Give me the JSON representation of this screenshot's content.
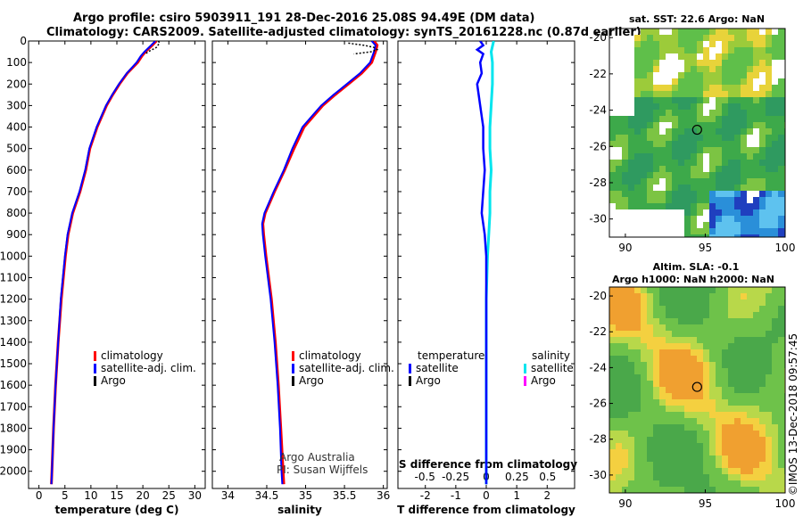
{
  "title_line1": "Argo profile: csiro 5903911_191 28-Dec-2016 25.08S 94.49E (DM data)",
  "title_line2": "Climatology: CARS2009. Satellite-adjusted climatology: synTS_20161228.nc (0.87d earlier)",
  "credit_line1": "Argo Australia",
  "credit_line2": "PI: Susan Wijffels",
  "stamp": "©IMOS 13-Dec-2018 09:57:45",
  "colors": {
    "climatology": "#ff0000",
    "satellite": "#0000ff",
    "argo": "#000000",
    "sat_salinity": "#00e5ee",
    "argo_salinity": "#ff00ff"
  },
  "chart_data": [
    {
      "type": "line",
      "xlabel": "temperature (deg C)",
      "xlim": [
        -2,
        32
      ],
      "xticks": [
        0,
        5,
        10,
        15,
        20,
        25,
        30
      ],
      "ylim": [
        2080,
        0
      ],
      "yticks": [
        0,
        100,
        200,
        300,
        400,
        500,
        600,
        700,
        800,
        900,
        1000,
        1100,
        1200,
        1300,
        1400,
        1500,
        1600,
        1700,
        1800,
        1900,
        2000
      ],
      "legend": [
        "climatology",
        "satellite-adj. clim.",
        "Argo"
      ],
      "series": [
        {
          "name": "climatology",
          "depth": [
            0,
            20,
            50,
            70,
            100,
            150,
            200,
            250,
            300,
            400,
            500,
            600,
            700,
            800,
            900,
            1000,
            1200,
            1400,
            1600,
            1800,
            2000,
            2060
          ],
          "values": [
            22.6,
            21.8,
            20.5,
            19.8,
            19.0,
            17.0,
            15.5,
            14.2,
            13.0,
            11.2,
            9.8,
            9.0,
            7.9,
            6.5,
            5.6,
            5.1,
            4.3,
            3.7,
            3.2,
            2.8,
            2.5,
            2.4
          ]
        },
        {
          "name": "satellite-adj. clim.",
          "depth": [
            0,
            20,
            50,
            70,
            100,
            150,
            200,
            250,
            300,
            400,
            500,
            600,
            700,
            800,
            900,
            1000,
            1200,
            1400,
            1600,
            1800,
            2000,
            2060
          ],
          "values": [
            22.4,
            21.6,
            20.3,
            19.6,
            18.8,
            16.9,
            15.4,
            14.1,
            12.9,
            11.1,
            9.7,
            8.9,
            7.8,
            6.4,
            5.5,
            5.0,
            4.2,
            3.7,
            3.2,
            2.8,
            2.5,
            2.4
          ]
        },
        {
          "name": "Argo",
          "depth": [
            0,
            10,
            20,
            30,
            40,
            50,
            60
          ],
          "values": [
            23.0,
            23.2,
            22.9,
            22.6,
            21.8,
            21.0,
            20.5
          ]
        }
      ]
    },
    {
      "type": "line",
      "xlabel": "salinity",
      "xlim": [
        33.8,
        36.05
      ],
      "xticks": [
        34,
        34.5,
        35,
        35.5,
        36
      ],
      "ylim": [
        2080,
        0
      ],
      "legend": [
        "climatology",
        "satellite-adj. clim.",
        "Argo"
      ],
      "series": [
        {
          "name": "climatology",
          "depth": [
            0,
            20,
            50,
            100,
            150,
            200,
            250,
            300,
            400,
            500,
            600,
            700,
            800,
            850,
            900,
            1000,
            1200,
            1400,
            1600,
            1800,
            2000,
            2060
          ],
          "values": [
            35.88,
            35.92,
            35.9,
            35.85,
            35.72,
            35.55,
            35.38,
            35.22,
            34.98,
            34.85,
            34.73,
            34.6,
            34.48,
            34.45,
            34.46,
            34.49,
            34.56,
            34.61,
            34.65,
            34.68,
            34.71,
            34.72
          ]
        },
        {
          "name": "satellite-adj. clim.",
          "depth": [
            0,
            20,
            50,
            100,
            150,
            200,
            250,
            300,
            400,
            500,
            600,
            700,
            800,
            850,
            900,
            1000,
            1200,
            1400,
            1600,
            1800,
            2000,
            2060
          ],
          "values": [
            35.85,
            35.9,
            35.88,
            35.83,
            35.7,
            35.53,
            35.36,
            35.2,
            34.96,
            34.83,
            34.72,
            34.59,
            34.47,
            34.44,
            34.45,
            34.48,
            34.55,
            34.6,
            34.64,
            34.67,
            34.69,
            34.7
          ]
        },
        {
          "name": "Argo",
          "depth": [
            10,
            20,
            30,
            40,
            50,
            60
          ],
          "values": [
            35.55,
            35.75,
            35.88,
            35.92,
            35.84,
            35.62
          ]
        }
      ]
    },
    {
      "type": "line",
      "xlabel": "T difference from climatology",
      "xlabel_top": "S difference from climatology",
      "xlim": [
        -2.9,
        2.9
      ],
      "xticks": [
        -2,
        -1,
        0,
        1,
        2
      ],
      "xticks_top": [
        -0.5,
        -0.25,
        0,
        0.25,
        0.5
      ],
      "xticks_top_labels": [
        "-0.5",
        "-0.25",
        "0",
        "0.25",
        "0.5"
      ],
      "ylim": [
        2080,
        0
      ],
      "legend_temperature_title": "temperature",
      "legend_salinity_title": "salinity",
      "legend_temperature": [
        "satellite",
        "Argo"
      ],
      "legend_salinity": [
        "satellite",
        "Argo"
      ],
      "series": [
        {
          "name": "temperature satellite",
          "depth": [
            0,
            20,
            40,
            60,
            100,
            150,
            200,
            250,
            300,
            350,
            400,
            500,
            600,
            700,
            800,
            900,
            1000,
            1200,
            1400,
            1600,
            1800,
            2000,
            2060
          ],
          "values": [
            -0.2,
            -0.1,
            -0.3,
            -0.1,
            -0.2,
            -0.15,
            -0.3,
            -0.25,
            -0.2,
            -0.15,
            -0.1,
            -0.1,
            -0.05,
            -0.1,
            -0.15,
            -0.05,
            0.0,
            0.0,
            0.0,
            0.0,
            0.0,
            0.0,
            0.0
          ]
        },
        {
          "name": "salinity satellite",
          "depth": [
            0,
            50,
            100,
            200,
            300,
            400,
            500,
            600,
            700,
            800,
            900,
            1000,
            1200,
            1400,
            1600,
            1800,
            2000,
            2060
          ],
          "values": [
            0.06,
            0.04,
            0.05,
            0.05,
            0.04,
            0.03,
            0.03,
            0.04,
            0.03,
            0.03,
            0.02,
            0.01,
            0.0,
            0.0,
            0.0,
            0.0,
            0.0,
            0.0
          ]
        }
      ]
    },
    {
      "type": "heatmap",
      "title": "sat. SST: 22.6 Argo: NaN",
      "xlim": [
        89,
        100
      ],
      "ylim": [
        -31,
        -19.5
      ],
      "xticks": [
        90,
        95,
        100
      ],
      "yticks": [
        -20,
        -22,
        -24,
        -26,
        -28,
        -30
      ],
      "marker": {
        "lon": 94.49,
        "lat": -25.08
      }
    },
    {
      "type": "heatmap",
      "title_line1": "Altim. SLA: -0.1",
      "title_line2": "Argo h1000: NaN h2000: NaN",
      "xlim": [
        89,
        100
      ],
      "ylim": [
        -31,
        -19.5
      ],
      "xticks": [
        90,
        95,
        100
      ],
      "yticks": [
        -20,
        -22,
        -24,
        -26,
        -28,
        -30
      ],
      "marker": {
        "lon": 94.49,
        "lat": -25.08
      }
    }
  ]
}
